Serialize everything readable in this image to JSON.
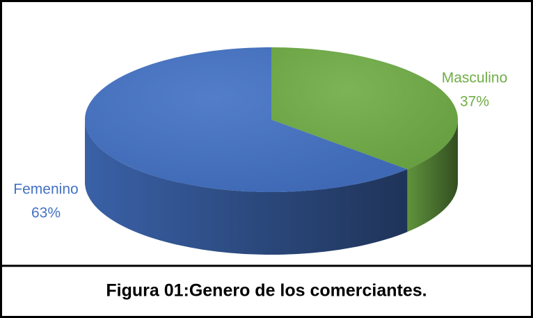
{
  "chart_data": {
    "type": "pie",
    "caption": "Figura 01:Genero de los comerciantes.",
    "categories": [
      "Masculino",
      "Femenino"
    ],
    "values": [
      37,
      63
    ],
    "value_labels": [
      "37%",
      "63%"
    ],
    "colors": [
      "#70ad47",
      "#4472c4"
    ]
  }
}
